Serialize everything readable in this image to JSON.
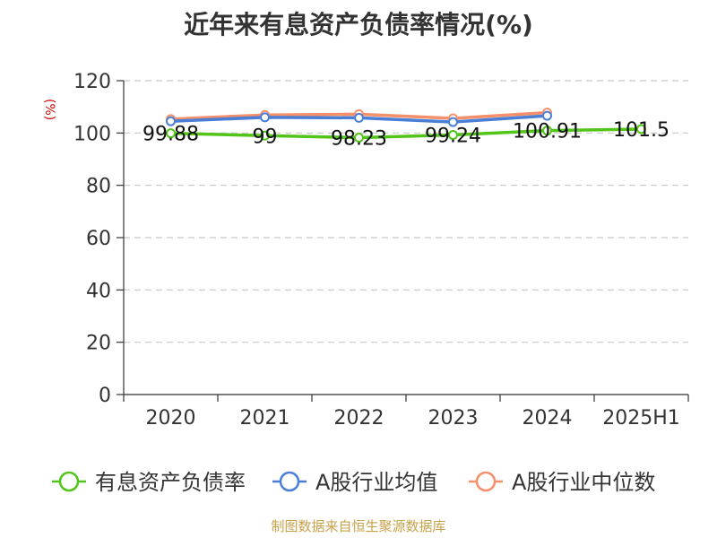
{
  "title": "近年来有息资产负债率情况(%)",
  "source": "制图数据来自恒生聚源数据库",
  "chart_data": {
    "type": "line",
    "title": "近年来有息资产负债率情况(%)",
    "ylabel": "(%)",
    "xlabel": "",
    "categories": [
      "2020",
      "2021",
      "2022",
      "2023",
      "2024",
      "2025H1"
    ],
    "ylim": [
      0,
      120
    ],
    "yticks": [
      0,
      20,
      40,
      60,
      80,
      100,
      120
    ],
    "grid": true,
    "legend_position": "bottom",
    "series": [
      {
        "name": "有息资产负债率",
        "color": "#52c41a",
        "values": [
          99.88,
          99,
          98.23,
          99.24,
          100.91,
          101.5
        ],
        "labels": [
          "99.88",
          "99",
          "98.23",
          "99.24",
          "100.91",
          "101.5"
        ],
        "show_labels": true
      },
      {
        "name": "A股行业均值",
        "color": "#4a7fd8",
        "values": [
          104.5,
          106.0,
          105.8,
          104.2,
          106.6,
          null
        ],
        "show_labels": false
      },
      {
        "name": "A股行业中位数",
        "color": "#f5906a",
        "values": [
          105.3,
          106.9,
          107.2,
          105.6,
          107.8,
          null
        ],
        "show_labels": false
      }
    ]
  }
}
